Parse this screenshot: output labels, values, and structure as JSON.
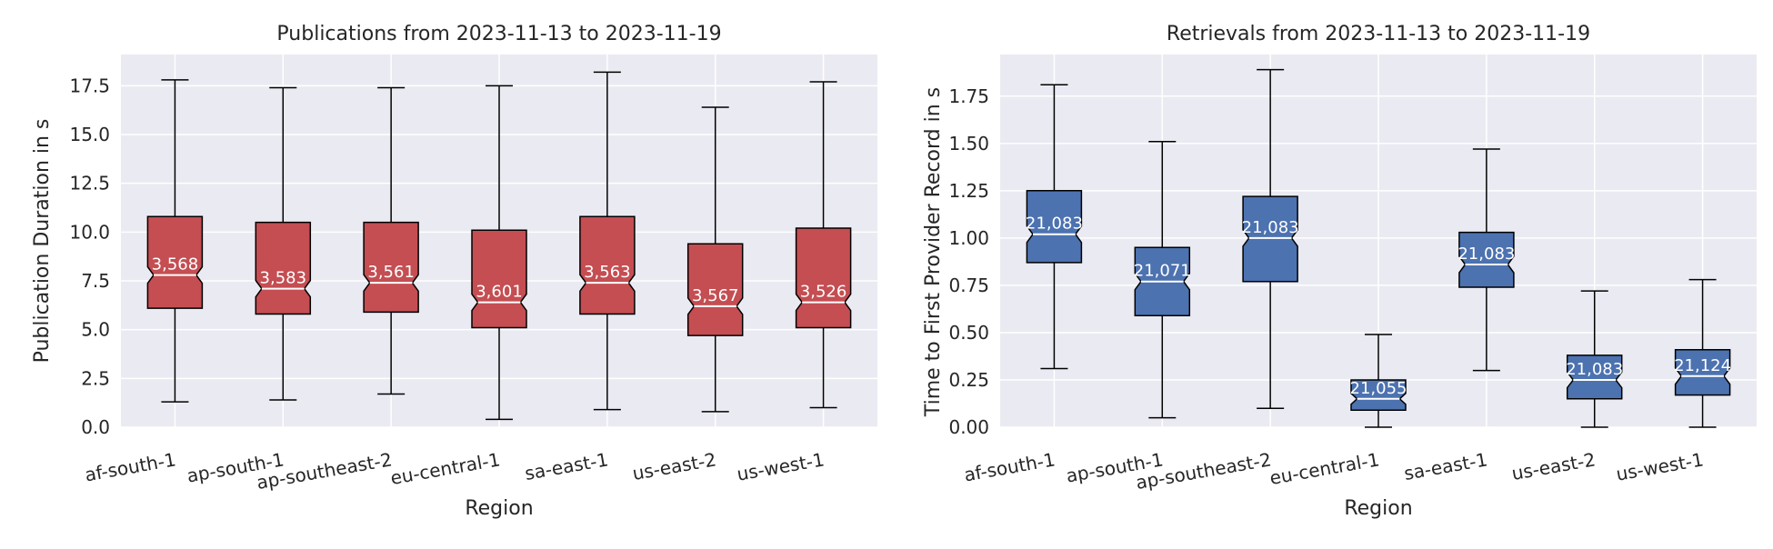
{
  "chart_data": [
    {
      "type": "box",
      "title": "Publications from 2023-11-13 to 2023-11-19",
      "xlabel": "Region",
      "ylabel": "Publication Duration in s",
      "ylim": [
        0,
        19.1
      ],
      "yticks": [
        "0.0",
        "2.5",
        "5.0",
        "7.5",
        "10.0",
        "12.5",
        "15.0",
        "17.5"
      ],
      "ytick_values": [
        0,
        2.5,
        5,
        7.5,
        10,
        12.5,
        15,
        17.5
      ],
      "grid": true,
      "notched": true,
      "color": "#c44e52",
      "categories": [
        "af-south-1",
        "ap-south-1",
        "ap-southeast-2",
        "eu-central-1",
        "sa-east-1",
        "us-east-2",
        "us-west-1"
      ],
      "boxes": [
        {
          "whislo": 1.3,
          "q1": 6.1,
          "med": 7.8,
          "q3": 10.8,
          "whishi": 17.8,
          "count": "3,568"
        },
        {
          "whislo": 1.4,
          "q1": 5.8,
          "med": 7.1,
          "q3": 10.5,
          "whishi": 17.4,
          "count": "3,583"
        },
        {
          "whislo": 1.7,
          "q1": 5.9,
          "med": 7.4,
          "q3": 10.5,
          "whishi": 17.4,
          "count": "3,561"
        },
        {
          "whislo": 0.4,
          "q1": 5.1,
          "med": 6.4,
          "q3": 10.1,
          "whishi": 17.5,
          "count": "3,601"
        },
        {
          "whislo": 0.9,
          "q1": 5.8,
          "med": 7.4,
          "q3": 10.8,
          "whishi": 18.2,
          "count": "3,563"
        },
        {
          "whislo": 0.8,
          "q1": 4.7,
          "med": 6.2,
          "q3": 9.4,
          "whishi": 16.4,
          "count": "3,567"
        },
        {
          "whislo": 1.0,
          "q1": 5.1,
          "med": 6.4,
          "q3": 10.2,
          "whishi": 17.7,
          "count": "3,526"
        }
      ]
    },
    {
      "type": "box",
      "title": "Retrievals from 2023-11-13 to 2023-11-19",
      "xlabel": "Region",
      "ylabel": "Time to First Provider Record in s",
      "ylim": [
        0,
        1.97
      ],
      "yticks": [
        "0.00",
        "0.25",
        "0.50",
        "0.75",
        "1.00",
        "1.25",
        "1.50",
        "1.75"
      ],
      "ytick_values": [
        0,
        0.25,
        0.5,
        0.75,
        1.0,
        1.25,
        1.5,
        1.75
      ],
      "grid": true,
      "notched": true,
      "color": "#4c72b0",
      "categories": [
        "af-south-1",
        "ap-south-1",
        "ap-southeast-2",
        "eu-central-1",
        "sa-east-1",
        "us-east-2",
        "us-west-1"
      ],
      "boxes": [
        {
          "whislo": 0.31,
          "q1": 0.87,
          "med": 1.02,
          "q3": 1.25,
          "whishi": 1.81,
          "count": "21,083"
        },
        {
          "whislo": 0.05,
          "q1": 0.59,
          "med": 0.77,
          "q3": 0.95,
          "whishi": 1.51,
          "count": "21,071"
        },
        {
          "whislo": 0.1,
          "q1": 0.77,
          "med": 1.0,
          "q3": 1.22,
          "whishi": 1.89,
          "count": "21,083"
        },
        {
          "whislo": 0.0,
          "q1": 0.09,
          "med": 0.15,
          "q3": 0.25,
          "whishi": 0.49,
          "count": "21,055"
        },
        {
          "whislo": 0.3,
          "q1": 0.74,
          "med": 0.86,
          "q3": 1.03,
          "whishi": 1.47,
          "count": "21,083"
        },
        {
          "whislo": 0.0,
          "q1": 0.15,
          "med": 0.25,
          "q3": 0.38,
          "whishi": 0.72,
          "count": "21,083"
        },
        {
          "whislo": 0.0,
          "q1": 0.17,
          "med": 0.27,
          "q3": 0.41,
          "whishi": 0.78,
          "count": "21,124"
        }
      ]
    }
  ]
}
